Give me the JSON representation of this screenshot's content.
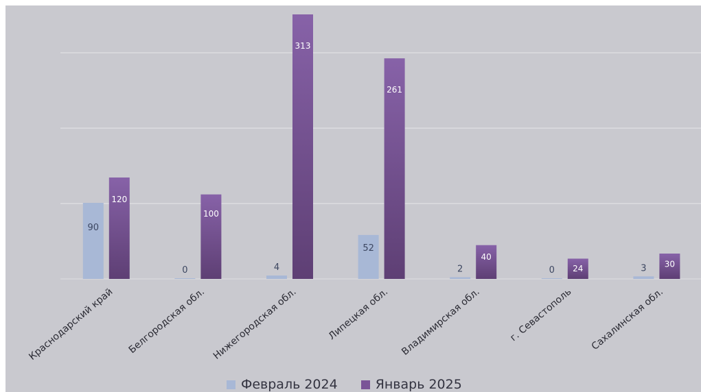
{
  "chart_data": {
    "type": "bar",
    "categories": [
      "Краснодарский край",
      "Белгородская обл.",
      "Нижегородская обл.",
      "Липецкая обл.",
      "Владимирская обл.",
      "г. Севастополь",
      "Сахалинская обл."
    ],
    "series": [
      {
        "name": "Февраль 2024",
        "values": [
          90,
          0,
          4,
          52,
          2,
          0,
          3
        ],
        "color": "#a8b8d6"
      },
      {
        "name": "Январь 2025",
        "values": [
          120,
          100,
          313,
          261,
          40,
          24,
          30
        ],
        "color": "#7a5497"
      }
    ],
    "ylim": [
      0,
      313
    ],
    "grid": true,
    "legend_position": "bottom"
  }
}
